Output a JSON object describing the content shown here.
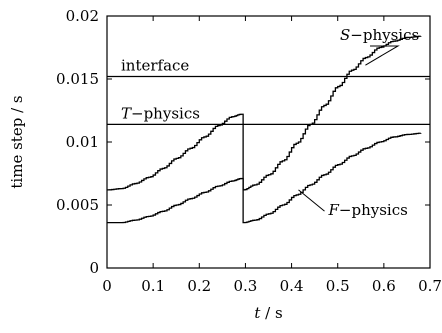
{
  "chart_data": {
    "type": "line",
    "title": "",
    "xlabel": {
      "var": "t",
      "unit": " / s"
    },
    "ylabel": "time step / s",
    "xlim": [
      0,
      0.7
    ],
    "ylim": [
      0,
      0.02
    ],
    "xticks": [
      0,
      0.1,
      0.2,
      0.3,
      0.4,
      0.5,
      0.6,
      0.7
    ],
    "xtick_labels": [
      "0",
      "0.1",
      "0.2",
      "0.3",
      "0.4",
      "0.5",
      "0.6",
      "0.7"
    ],
    "yticks": [
      0,
      0.005,
      0.01,
      0.015,
      0.02
    ],
    "ytick_labels": [
      "0",
      "0.005",
      "0.01",
      "0.015",
      "0.02"
    ],
    "grid": false,
    "horizontal_lines": [
      {
        "label": "interface",
        "y": 0.0152
      },
      {
        "label_var": "T",
        "label_rest": "−physics",
        "y": 0.0114
      }
    ],
    "series": [
      {
        "label_var": "S",
        "label_rest": "−physics",
        "stepped": true,
        "x": [
          0.0,
          0.03,
          0.06,
          0.09,
          0.12,
          0.15,
          0.18,
          0.21,
          0.24,
          0.27,
          0.29,
          0.295,
          0.32,
          0.35,
          0.38,
          0.41,
          0.44,
          0.47,
          0.5,
          0.53,
          0.56,
          0.59,
          0.62,
          0.65,
          0.68
        ],
        "y": [
          0.0062,
          0.0063,
          0.0067,
          0.0072,
          0.0079,
          0.0087,
          0.0095,
          0.0104,
          0.0113,
          0.012,
          0.0122,
          0.0062,
          0.0066,
          0.0074,
          0.0085,
          0.0099,
          0.0114,
          0.0129,
          0.0144,
          0.0157,
          0.0167,
          0.0175,
          0.018,
          0.0183,
          0.0184
        ]
      },
      {
        "label_var": "F",
        "label_rest": "−physics",
        "stepped": true,
        "x": [
          0.0,
          0.03,
          0.06,
          0.09,
          0.12,
          0.15,
          0.18,
          0.21,
          0.24,
          0.27,
          0.29,
          0.295,
          0.32,
          0.35,
          0.38,
          0.41,
          0.44,
          0.47,
          0.5,
          0.53,
          0.56,
          0.59,
          0.62,
          0.65,
          0.68
        ],
        "y": [
          0.0036,
          0.0036,
          0.0038,
          0.0041,
          0.0045,
          0.005,
          0.0055,
          0.006,
          0.0065,
          0.0069,
          0.0071,
          0.0036,
          0.0038,
          0.0043,
          0.005,
          0.0058,
          0.0066,
          0.0074,
          0.0082,
          0.0089,
          0.0095,
          0.01,
          0.0104,
          0.0106,
          0.0107
        ]
      }
    ],
    "annotations": [
      {
        "target": 0,
        "text_x": 0.505,
        "text_y": 0.0181,
        "arrow_to": [
          0.56,
          0.0161
        ]
      },
      {
        "target": 1,
        "text_x": 0.48,
        "text_y": 0.0042,
        "arrow_to": [
          0.415,
          0.0062
        ]
      }
    ]
  }
}
